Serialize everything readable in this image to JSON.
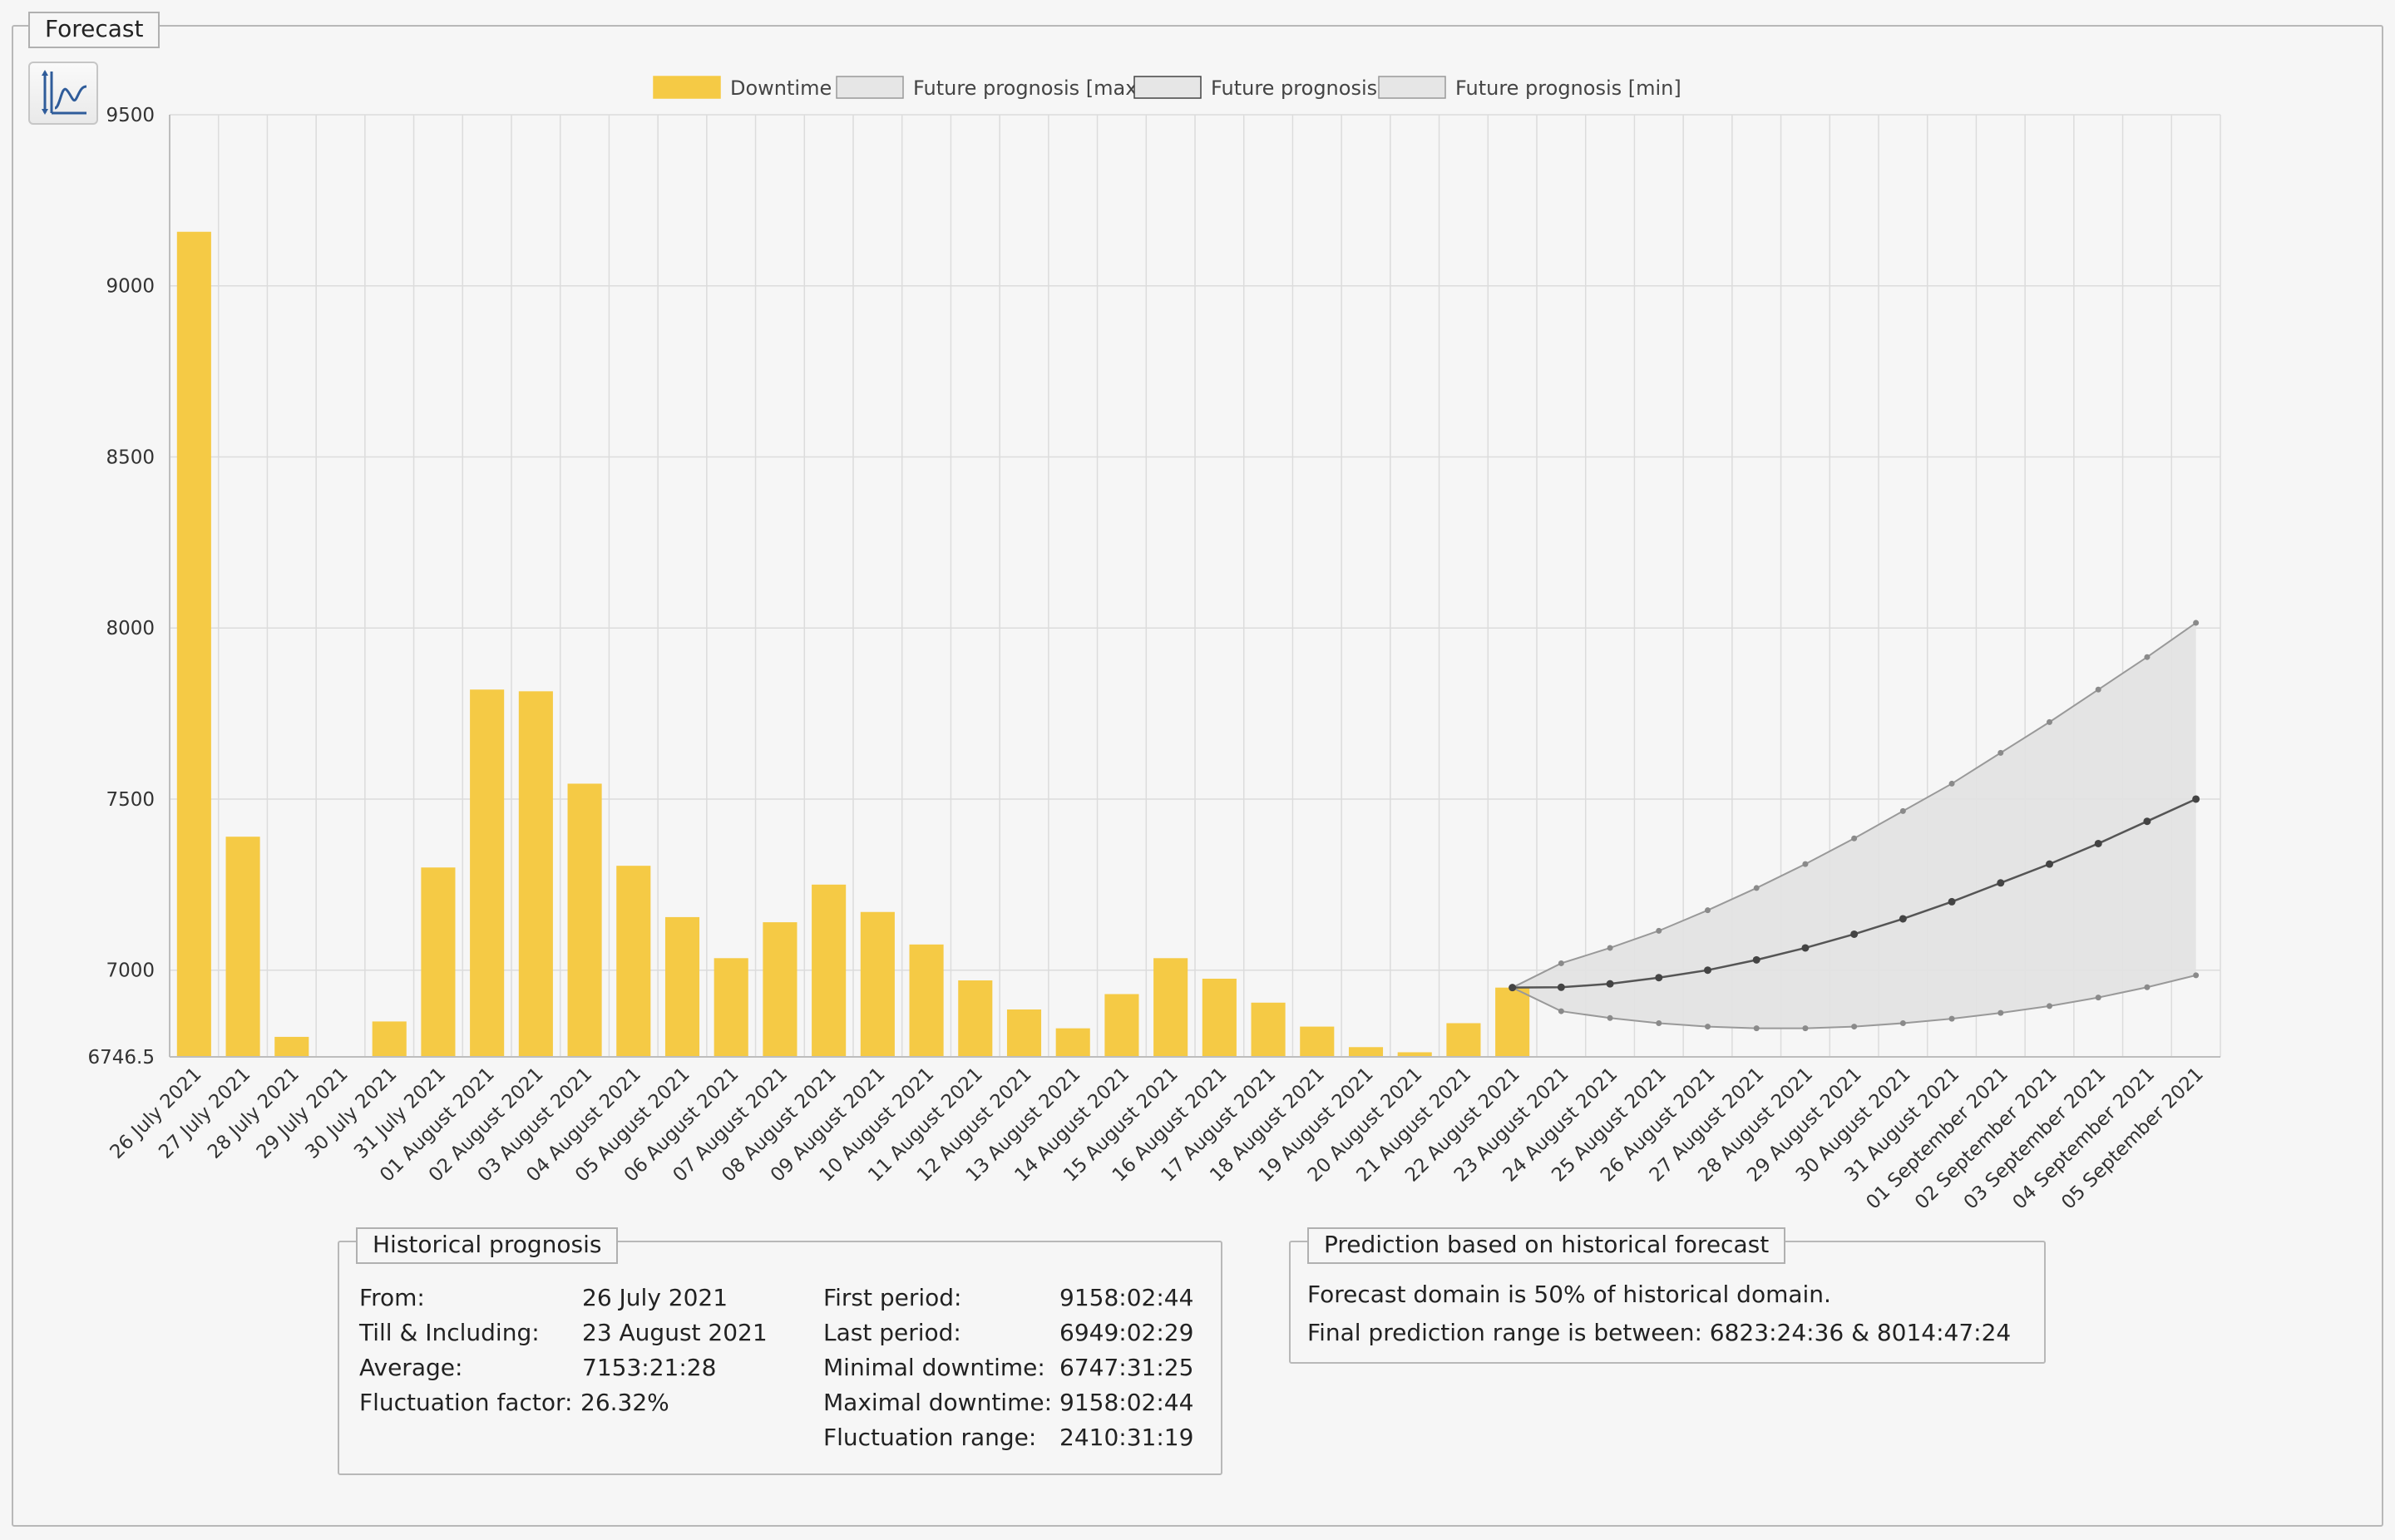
{
  "panel": {
    "title": "Forecast"
  },
  "toolbar": {
    "chart_toggle_icon": "chart-line-icon"
  },
  "chart_data": {
    "type": "bar",
    "categories": [
      "26 July 2021",
      "27 July 2021",
      "28 July 2021",
      "29 July 2021",
      "30 July 2021",
      "31 July 2021",
      "01 August 2021",
      "02 August 2021",
      "03 August 2021",
      "04 August 2021",
      "05 August 2021",
      "06 August 2021",
      "07 August 2021",
      "08 August 2021",
      "09 August 2021",
      "10 August 2021",
      "11 August 2021",
      "12 August 2021",
      "13 August 2021",
      "14 August 2021",
      "15 August 2021",
      "16 August 2021",
      "17 August 2021",
      "18 August 2021",
      "19 August 2021",
      "20 August 2021",
      "21 August 2021",
      "22 August 2021",
      "23 August 2021",
      "24 August 2021",
      "25 August 2021",
      "26 August 2021",
      "27 August 2021",
      "28 August 2021",
      "29 August 2021",
      "30 August 2021",
      "31 August 2021",
      "01 September 2021",
      "02 September 2021",
      "03 September 2021",
      "04 September 2021",
      "05 September 2021"
    ],
    "series": [
      {
        "name": "Downtime",
        "type": "bar",
        "color": "#f5ca45",
        "values": [
          9158,
          7390,
          6805,
          null,
          6850,
          7300,
          7820,
          7815,
          7545,
          7305,
          7155,
          7035,
          7140,
          7250,
          7170,
          7075,
          6970,
          6885,
          6830,
          6930,
          7035,
          6975,
          6905,
          6835,
          6775,
          6760,
          6845,
          6949,
          null,
          null,
          null,
          null,
          null,
          null,
          null,
          null,
          null,
          null,
          null,
          null,
          null,
          null
        ]
      },
      {
        "name": "Future prognosis [max]",
        "type": "line",
        "color": "#999999",
        "values": [
          null,
          null,
          null,
          null,
          null,
          null,
          null,
          null,
          null,
          null,
          null,
          null,
          null,
          null,
          null,
          null,
          null,
          null,
          null,
          null,
          null,
          null,
          null,
          null,
          null,
          null,
          null,
          6949,
          7020,
          7065,
          7115,
          7175,
          7240,
          7310,
          7385,
          7465,
          7545,
          7635,
          7725,
          7820,
          7915,
          8015
        ]
      },
      {
        "name": "Future prognosis",
        "type": "line",
        "color": "#555555",
        "values": [
          null,
          null,
          null,
          null,
          null,
          null,
          null,
          null,
          null,
          null,
          null,
          null,
          null,
          null,
          null,
          null,
          null,
          null,
          null,
          null,
          null,
          null,
          null,
          null,
          null,
          null,
          null,
          6949,
          6950,
          6960,
          6978,
          7000,
          7030,
          7065,
          7105,
          7150,
          7200,
          7255,
          7310,
          7370,
          7435,
          7500
        ]
      },
      {
        "name": "Future prognosis [min]",
        "type": "line",
        "color": "#999999",
        "values": [
          null,
          null,
          null,
          null,
          null,
          null,
          null,
          null,
          null,
          null,
          null,
          null,
          null,
          null,
          null,
          null,
          null,
          null,
          null,
          null,
          null,
          null,
          null,
          null,
          null,
          null,
          null,
          6949,
          6880,
          6860,
          6845,
          6835,
          6830,
          6830,
          6835,
          6845,
          6858,
          6875,
          6895,
          6920,
          6950,
          6985
        ]
      }
    ],
    "yticks": [
      "6746.5",
      "7000",
      "7500",
      "8000",
      "8500",
      "9000",
      "9500"
    ],
    "ylim": [
      6746.5,
      9500
    ],
    "grid": true,
    "legend_position": "top"
  },
  "historical": {
    "title": "Historical prognosis",
    "left_labels": [
      "From:",
      "Till & Including:",
      "Average:",
      "Fluctuation factor:"
    ],
    "left_values": [
      "26 July 2021",
      "23 August 2021",
      "7153:21:28",
      "26.32%"
    ],
    "right_labels": [
      "First period:",
      "Last period:",
      "Minimal downtime:",
      "Maximal downtime:",
      "Fluctuation range:"
    ],
    "right_values": [
      "9158:02:44",
      "6949:02:29",
      "6747:31:25",
      "9158:02:44",
      "2410:31:19"
    ]
  },
  "prediction": {
    "title": "Prediction based on historical forecast",
    "lines": [
      "Forecast domain is 50% of historical domain.",
      "Final prediction range is between: 6823:24:36 & 8014:47:24"
    ]
  }
}
